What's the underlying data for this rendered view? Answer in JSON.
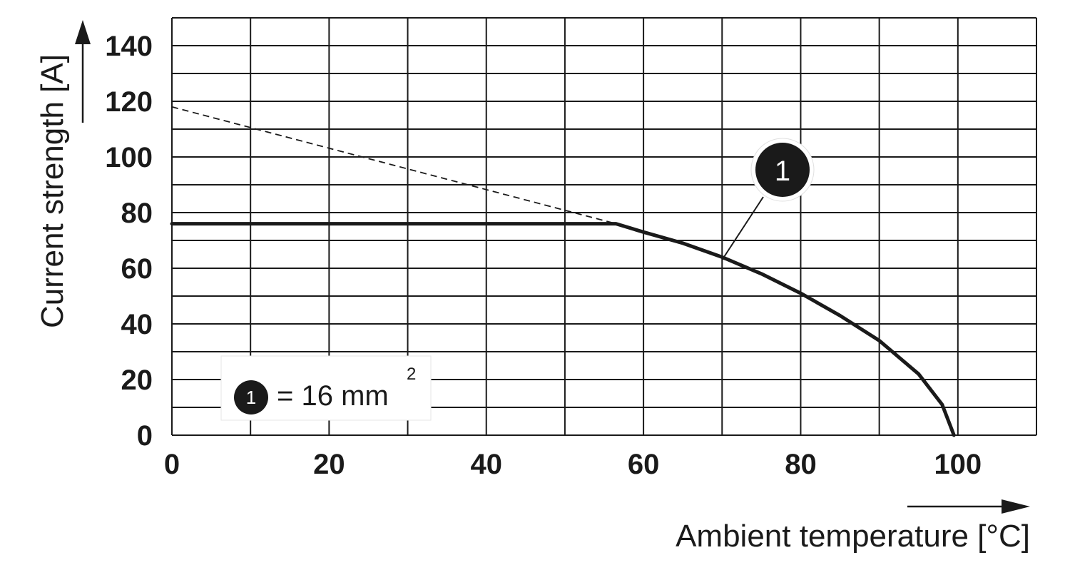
{
  "chart_data": {
    "type": "line",
    "xlabel": "Ambient temperature [°C]",
    "ylabel": "Current strength [A]",
    "xlim": [
      0,
      110
    ],
    "ylim": [
      0,
      150
    ],
    "x_ticks": [
      0,
      20,
      40,
      60,
      80,
      100
    ],
    "y_ticks": [
      0,
      20,
      40,
      60,
      80,
      100,
      120,
      140
    ],
    "grid": true,
    "grid_x_step": 10,
    "grid_y_step": 10,
    "series": [
      {
        "name": "16 mm2",
        "label": "1",
        "style": "solid",
        "points": [
          [
            0,
            76
          ],
          [
            56.5,
            76
          ],
          [
            60,
            73
          ],
          [
            65,
            69
          ],
          [
            70,
            64
          ],
          [
            75,
            58
          ],
          [
            80,
            51
          ],
          [
            85,
            43
          ],
          [
            90,
            34
          ],
          [
            95,
            22
          ],
          [
            98,
            11
          ],
          [
            99.5,
            0
          ]
        ]
      },
      {
        "style": "dashed",
        "points": [
          [
            0,
            118
          ],
          [
            56.5,
            76
          ]
        ]
      }
    ],
    "annotation": {
      "label": "1",
      "x": 70,
      "y": 63
    }
  },
  "legend": {
    "badge": "1",
    "text": "= 16 mm",
    "superscript": "2"
  },
  "colors": {
    "ink": "#1a1a1a",
    "background": "#ffffff"
  }
}
